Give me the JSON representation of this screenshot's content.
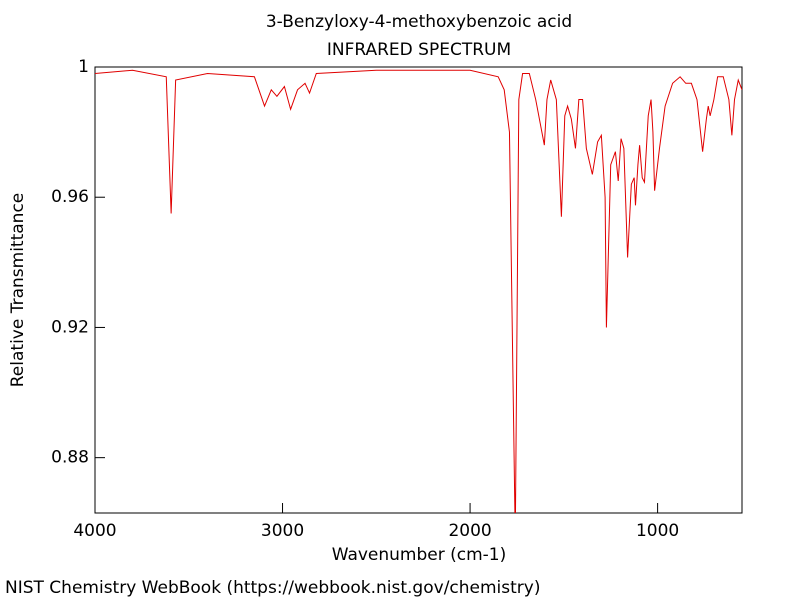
{
  "chart_data": {
    "type": "line",
    "title": "3-Benzyloxy-4-methoxybenzoic acid",
    "subtitle": "INFRARED SPECTRUM",
    "x_label": "Wavenumber (cm-1)",
    "y_label": "Relative Transmittance",
    "footer": "NIST Chemistry WebBook (https://webbook.nist.gov/chemistry)",
    "color": "#e00000",
    "xlim": [
      4000,
      550
    ],
    "ylim": [
      0.863,
      1.0
    ],
    "xticks": [
      4000,
      3000,
      2000,
      1000
    ],
    "yticks": [
      0.88,
      0.92,
      0.96,
      1
    ],
    "x": [
      4000,
      3800,
      3620,
      3594,
      3570,
      3400,
      3150,
      3096,
      3060,
      3030,
      2990,
      2957,
      2920,
      2880,
      2856,
      2820,
      2500,
      2000,
      1850,
      1818,
      1790,
      1759,
      1740,
      1720,
      1684,
      1650,
      1604,
      1590,
      1570,
      1540,
      1513,
      1495,
      1480,
      1460,
      1438,
      1420,
      1400,
      1380,
      1348,
      1320,
      1300,
      1280,
      1273,
      1250,
      1225,
      1210,
      1195,
      1180,
      1160,
      1140,
      1125,
      1118,
      1105,
      1096,
      1082,
      1070,
      1050,
      1035,
      1025,
      1016,
      990,
      960,
      920,
      880,
      850,
      820,
      790,
      760,
      740,
      730,
      720,
      700,
      680,
      650,
      620,
      604,
      590,
      570,
      550
    ],
    "values": [
      0.998,
      0.999,
      0.997,
      0.955,
      0.996,
      0.998,
      0.997,
      0.988,
      0.993,
      0.991,
      0.994,
      0.987,
      0.993,
      0.995,
      0.992,
      0.998,
      0.999,
      0.999,
      0.997,
      0.993,
      0.98,
      0.855,
      0.99,
      0.998,
      0.998,
      0.99,
      0.976,
      0.99,
      0.996,
      0.99,
      0.954,
      0.985,
      0.988,
      0.984,
      0.975,
      0.99,
      0.99,
      0.975,
      0.967,
      0.977,
      0.979,
      0.96,
      0.92,
      0.97,
      0.974,
      0.965,
      0.978,
      0.975,
      0.9415,
      0.964,
      0.966,
      0.9575,
      0.97,
      0.976,
      0.966,
      0.9646,
      0.985,
      0.99,
      0.98,
      0.962,
      0.975,
      0.988,
      0.995,
      0.997,
      0.995,
      0.995,
      0.99,
      0.974,
      0.984,
      0.988,
      0.985,
      0.99,
      0.997,
      0.997,
      0.99,
      0.979,
      0.99,
      0.996,
      0.993
    ]
  }
}
